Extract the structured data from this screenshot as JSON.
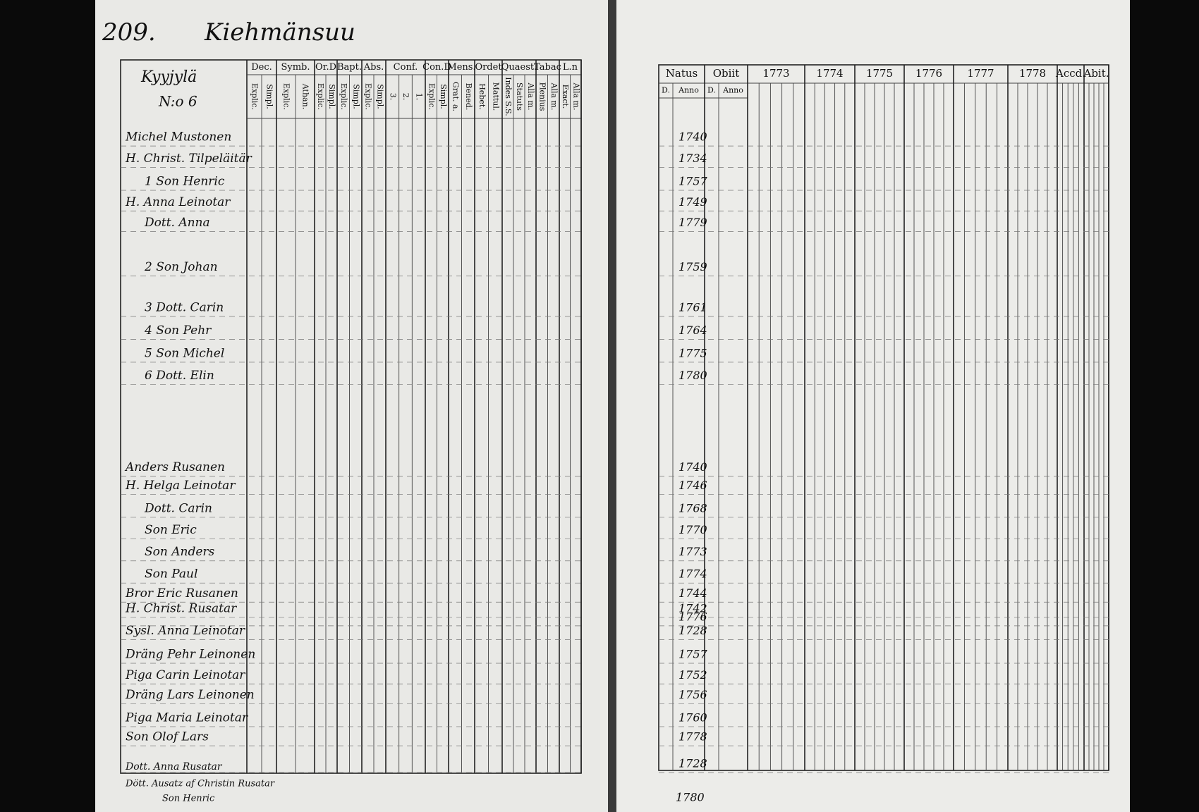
{
  "page_number": "209.",
  "heading": "Kiehmänsuu",
  "left_table": {
    "farm": "Kyyjylä",
    "number": "N:o 6",
    "columns": [
      {
        "top": "Dec.",
        "sub": [
          "Explic.",
          "Simpl."
        ]
      },
      {
        "top": "Symb.",
        "sub": [
          "Explic.",
          "Athan."
        ]
      },
      {
        "top": "Or.D",
        "sub": [
          "Explic.",
          "Simpl."
        ]
      },
      {
        "top": "Bapt.",
        "sub": [
          "Explic.",
          "Simpl."
        ]
      },
      {
        "top": "Abs.",
        "sub": [
          "Explic.",
          "Simpl."
        ]
      },
      {
        "top": "Conf.",
        "sub": [
          "3.",
          "2.",
          "1."
        ]
      },
      {
        "top": "Con.D",
        "sub": [
          "Explic.",
          "Simpl."
        ]
      },
      {
        "top": "Mens.",
        "sub": [
          "Grat. a.",
          "Bened."
        ]
      },
      {
        "top": "Ordet",
        "sub": [
          "Hebet.",
          "Mattul."
        ]
      },
      {
        "top": "Quaest.",
        "sub": [
          "Indes S.S.",
          "Statuts",
          "Alla m."
        ]
      },
      {
        "top": "Tabac",
        "sub": [
          "Plenius",
          "Alla m."
        ]
      },
      {
        "top": "L.n",
        "sub": [
          "Exact.",
          "Alla m."
        ]
      }
    ]
  },
  "right_table": {
    "columns": [
      {
        "top": "Natus",
        "sub": [
          "D.",
          "Anno"
        ]
      },
      {
        "top": "Obiit",
        "sub": [
          "D.",
          "Anno"
        ]
      },
      {
        "top": "1773"
      },
      {
        "top": "1774"
      },
      {
        "top": "1775"
      },
      {
        "top": "1776"
      },
      {
        "top": "1777"
      },
      {
        "top": "1778"
      },
      {
        "top": "Accd."
      },
      {
        "top": "Abit."
      }
    ]
  },
  "household": [
    {
      "name": "Michel Mustonen",
      "born": "1740"
    },
    {
      "name": "H. Christ. Tilpeläitär",
      "born": "1734"
    },
    {
      "name": "1 Son Henric",
      "born": "1757"
    },
    {
      "name": "H. Anna Leinotar",
      "born": "1749"
    },
    {
      "name": "Dott. Anna",
      "born": "1779"
    },
    {
      "name": "2 Son Johan",
      "born": "1759"
    },
    {
      "name": "3 Dott. Carin",
      "born": "1761"
    },
    {
      "name": "4 Son Pehr",
      "born": "1764"
    },
    {
      "name": "5 Son Michel",
      "born": "1775"
    },
    {
      "name": "6 Dott. Elin",
      "born": "1780"
    },
    {
      "name": "Anders Rusanen",
      "born": "1740"
    },
    {
      "name": "H. Helga Leinotar",
      "born": "1746"
    },
    {
      "name": "Dott. Carin",
      "born": "1768"
    },
    {
      "name": "Son Eric",
      "born": "1770"
    },
    {
      "name": "Son Anders",
      "born": "1773"
    },
    {
      "name": "Son Paul",
      "born": "1774"
    },
    {
      "name": "Bror Eric Rusanen",
      "born": "1744"
    },
    {
      "name": "H. Christ. Rusatar",
      "born": "1742"
    },
    {
      "born": "1776"
    },
    {
      "name": "Sysl. Anna Leinotar",
      "born": "1728"
    },
    {
      "name": "Dräng Pehr Leinonen",
      "born": "1757"
    },
    {
      "name": "Piga Carin Leinotar",
      "born": "1752"
    },
    {
      "name": "Dräng Lars Leinonen",
      "born": "1756"
    },
    {
      "name": "Piga Maria Leinotar",
      "born": "1760"
    },
    {
      "name": "Son Olof Lars",
      "born": "1778"
    },
    {
      "born": "1728"
    }
  ],
  "notes": [
    "Dott. Anna Rusatar",
    "Dött. Ausatz af Christin Rusatar",
    "Son Henric",
    "1780"
  ]
}
